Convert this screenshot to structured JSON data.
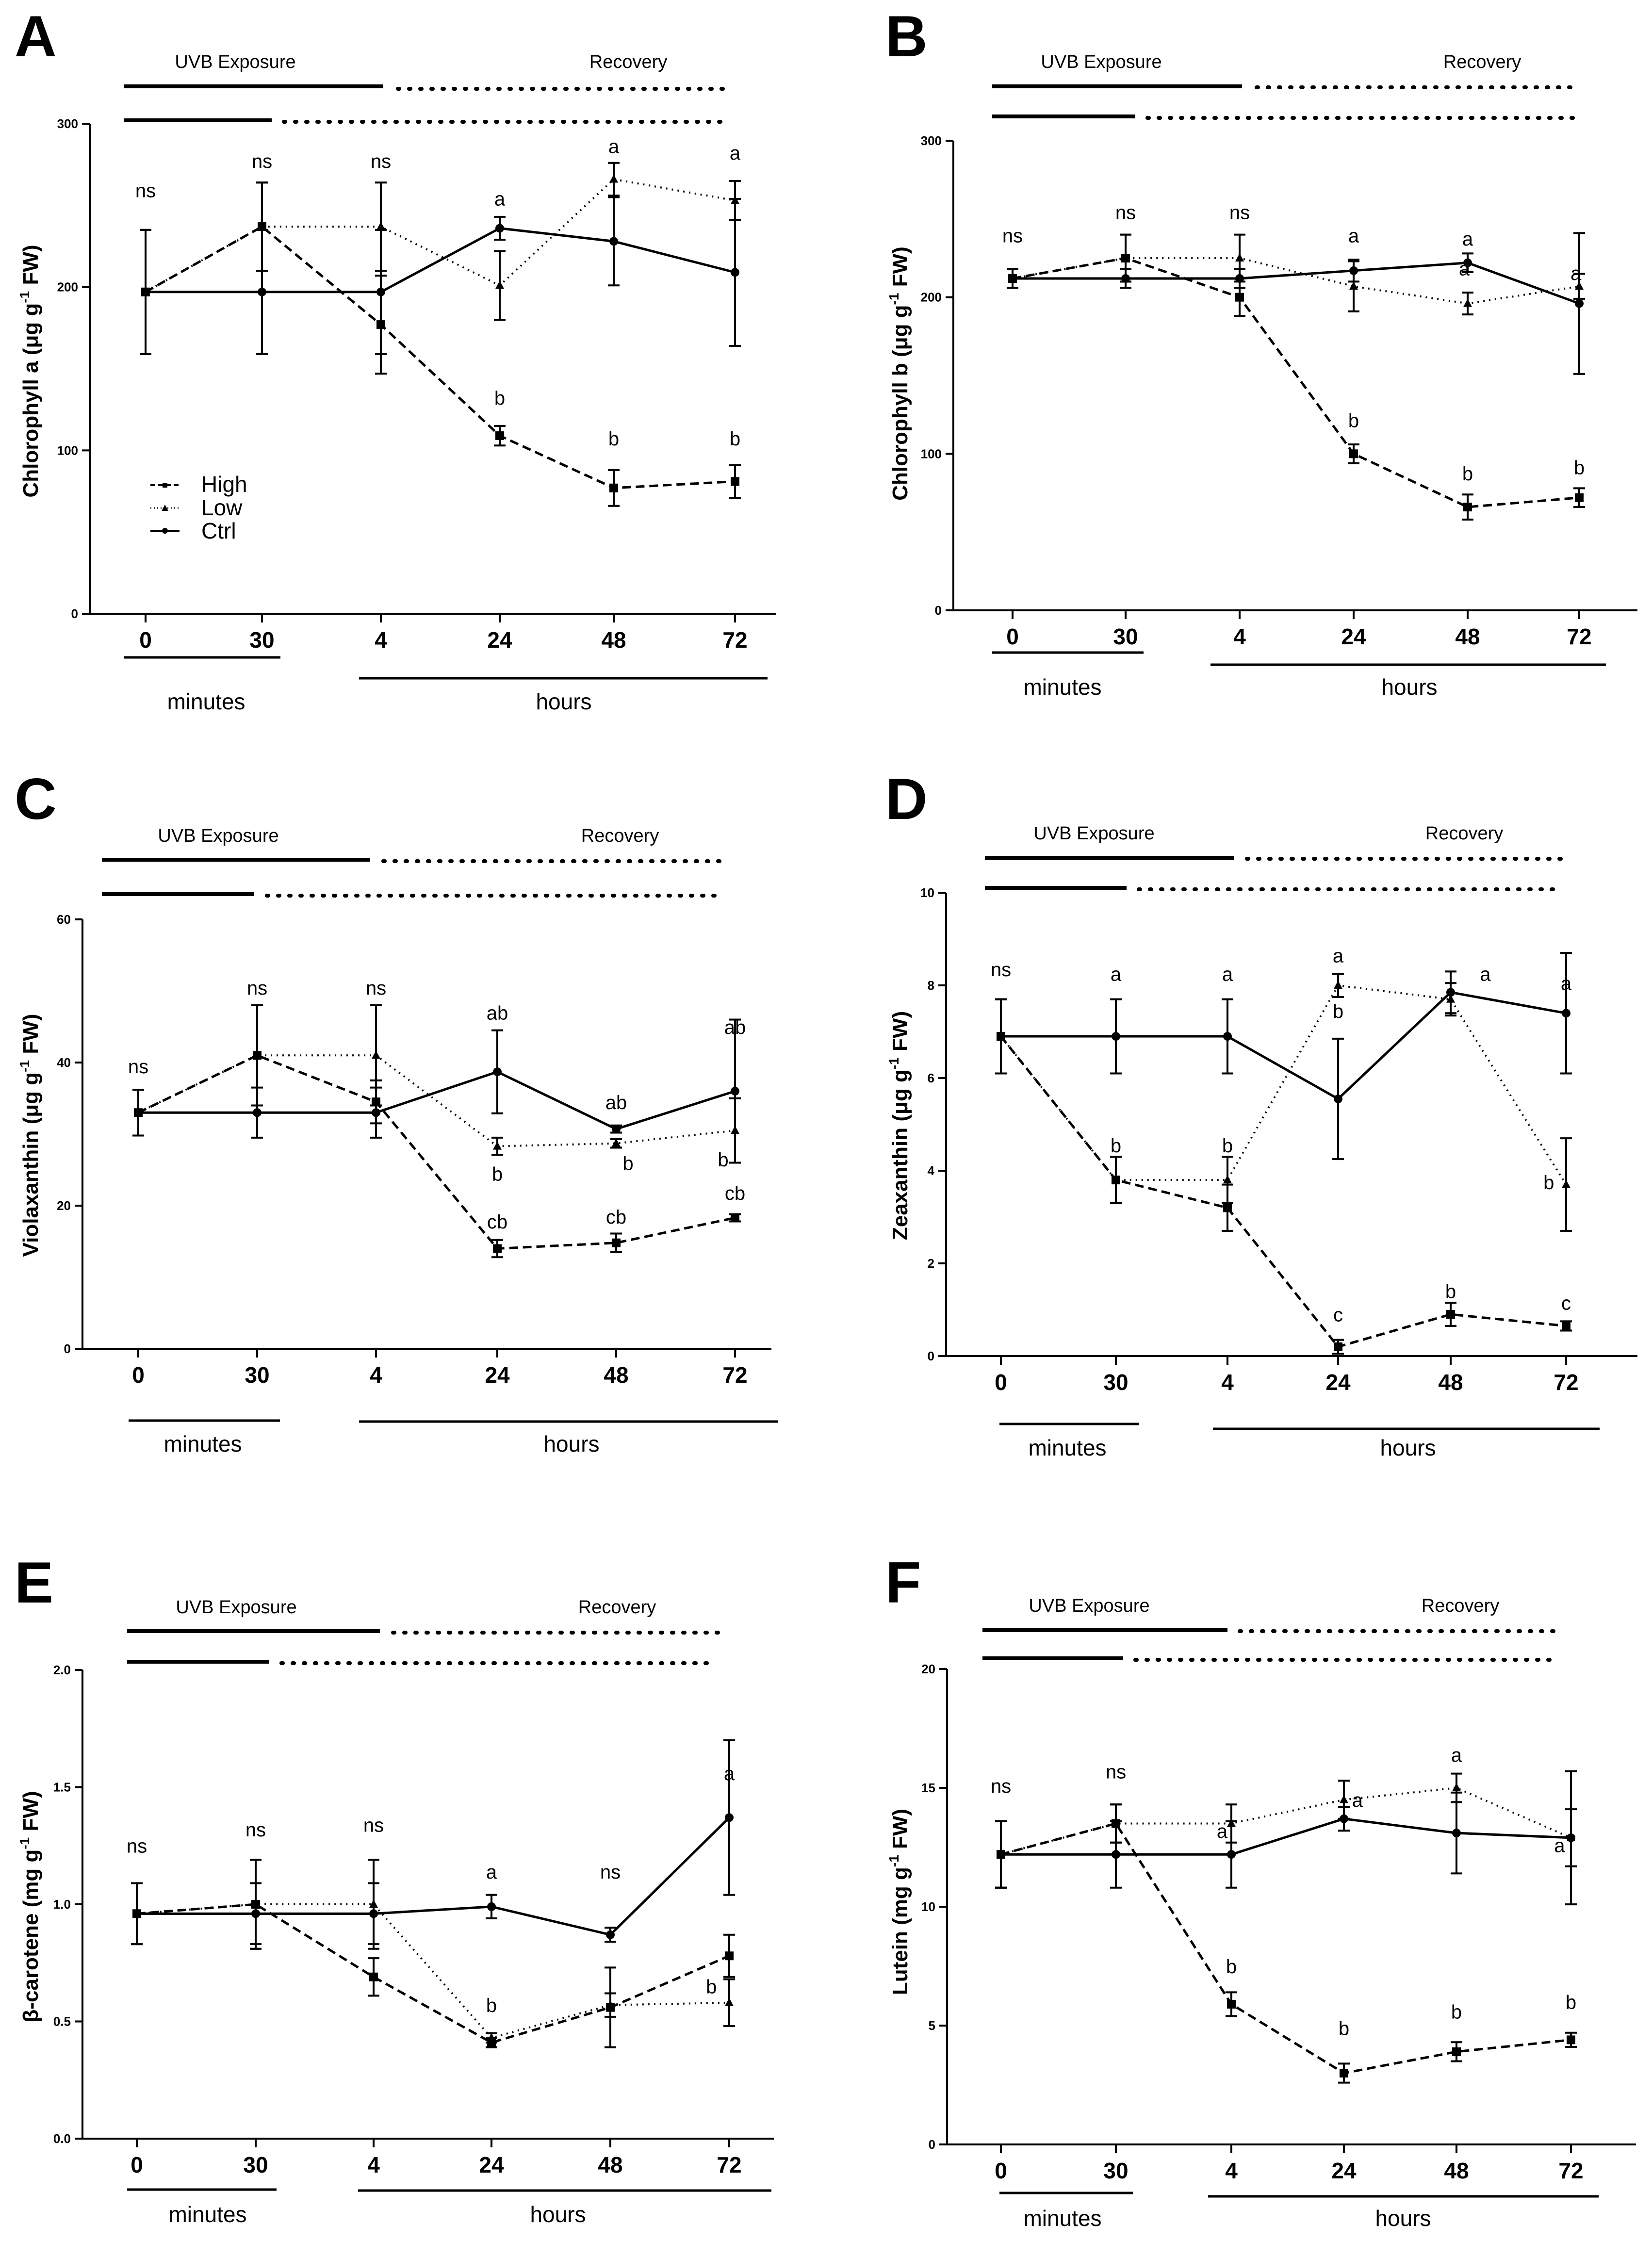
{
  "legend": {
    "high": "High",
    "low": "Low",
    "ctrl": "Ctrl"
  },
  "chart_data": [
    {
      "type": "line",
      "panel": "A",
      "ylabel_main": "Chlorophyll a (μg g",
      "ylabel_sup": "-1",
      "ylabel_end": " FW)",
      "ylim": [
        0,
        300
      ],
      "yticks": [
        0,
        100,
        200,
        300
      ],
      "yticklabels": [
        "0",
        "100",
        "200",
        "300"
      ],
      "categories": [
        "0",
        "30",
        "4",
        "24",
        "48",
        "72"
      ],
      "minutes_label": "minutes",
      "hours_label": "hours",
      "uvb_label": "UVB Exposure",
      "recovery_label": "Recovery",
      "legend_position": "lower-left",
      "series": [
        {
          "name": "High",
          "values": [
            197,
            237,
            177,
            109,
            77,
            81
          ],
          "errors": [
            38,
            27,
            30,
            6,
            11,
            10
          ]
        },
        {
          "name": "Low",
          "values": [
            197,
            237,
            237,
            201,
            266,
            253
          ],
          "errors": [
            38,
            27,
            27,
            21,
            10,
            12
          ]
        },
        {
          "name": "Ctrl",
          "values": [
            197,
            197,
            197,
            236,
            228,
            209
          ],
          "errors": [
            38,
            38,
            38,
            7,
            27,
            45
          ]
        }
      ],
      "annotations": [
        {
          "x": 0,
          "y": 255,
          "text": "ns"
        },
        {
          "x": 1,
          "y": 273,
          "text": "ns"
        },
        {
          "x": 2,
          "y": 273,
          "text": "ns"
        },
        {
          "x": 3,
          "y": 250,
          "text": "a"
        },
        {
          "x": 4,
          "y": 282,
          "text": "a"
        },
        {
          "x": 5,
          "y": 278,
          "text": "a"
        },
        {
          "x": 3,
          "y": 128,
          "text": "b"
        },
        {
          "x": 4,
          "y": 103,
          "text": "b"
        },
        {
          "x": 5,
          "y": 103,
          "text": "b"
        }
      ]
    },
    {
      "type": "line",
      "panel": "B",
      "ylabel_main": "Chlorophyll b (μg g",
      "ylabel_sup": "-1",
      "ylabel_end": " FW)",
      "ylim": [
        0,
        300
      ],
      "yticks": [
        0,
        100,
        200,
        300
      ],
      "yticklabels": [
        "0",
        "100",
        "200",
        "300"
      ],
      "categories": [
        "0",
        "30",
        "4",
        "24",
        "48",
        "72"
      ],
      "minutes_label": "minutes",
      "hours_label": "hours",
      "uvb_label": "UVB Exposure",
      "recovery_label": "Recovery",
      "series": [
        {
          "name": "High",
          "values": [
            212,
            225,
            200,
            100,
            66,
            72
          ],
          "errors": [
            6,
            15,
            12,
            6,
            8,
            6
          ]
        },
        {
          "name": "Low",
          "values": [
            212,
            225,
            225,
            207,
            196,
            207
          ],
          "errors": [
            6,
            15,
            15,
            16,
            7,
            8
          ]
        },
        {
          "name": "Ctrl",
          "values": [
            212,
            212,
            212,
            217,
            222,
            196
          ],
          "errors": [
            6,
            6,
            6,
            7,
            6,
            45
          ]
        }
      ],
      "annotations": [
        {
          "x": 0,
          "y": 235,
          "text": "ns"
        },
        {
          "x": 1,
          "y": 250,
          "text": "ns"
        },
        {
          "x": 2,
          "y": 250,
          "text": "ns"
        },
        {
          "x": 3,
          "y": 235,
          "text": "a"
        },
        {
          "x": 4,
          "y": 233,
          "text": "a"
        },
        {
          "x": 3.97,
          "y": 214,
          "text": "a"
        },
        {
          "x": 4.97,
          "y": 211,
          "text": "a"
        },
        {
          "x": 3,
          "y": 117,
          "text": "b"
        },
        {
          "x": 4,
          "y": 83,
          "text": "b"
        },
        {
          "x": 5,
          "y": 87,
          "text": "b"
        }
      ]
    },
    {
      "type": "line",
      "panel": "C",
      "ylabel_main": "Violaxanthin (μg g",
      "ylabel_sup": "-1",
      "ylabel_end": " FW)",
      "ylim": [
        0,
        60
      ],
      "yticks": [
        0,
        20,
        40,
        60
      ],
      "yticklabels": [
        "0",
        "20",
        "40",
        "60"
      ],
      "categories": [
        "0",
        "30",
        "4",
        "24",
        "48",
        "72"
      ],
      "minutes_label": "minutes",
      "hours_label": "hours",
      "uvb_label": "UVB Exposure",
      "recovery_label": "Recovery",
      "series": [
        {
          "name": "High",
          "values": [
            33,
            41,
            34.5,
            14,
            14.8,
            18.3
          ],
          "errors": [
            3.2,
            7,
            3,
            1.2,
            1.3,
            0.5
          ]
        },
        {
          "name": "Low",
          "values": [
            33,
            41,
            41,
            28.3,
            28.7,
            30.5
          ],
          "errors": [
            3.2,
            7,
            7,
            1.2,
            0.6,
            4.5
          ]
        },
        {
          "name": "Ctrl",
          "values": [
            33,
            33,
            33,
            38.7,
            30.7,
            36
          ],
          "errors": [
            3.2,
            3.5,
            3.5,
            5.8,
            0.5,
            10
          ]
        }
      ],
      "annotations": [
        {
          "x": 0,
          "y": 38.5,
          "text": "ns"
        },
        {
          "x": 1,
          "y": 49.5,
          "text": "ns"
        },
        {
          "x": 2,
          "y": 49.5,
          "text": "ns"
        },
        {
          "x": 3,
          "y": 46,
          "text": "ab"
        },
        {
          "x": 4,
          "y": 33.5,
          "text": "ab"
        },
        {
          "x": 5,
          "y": 44,
          "text": "ab"
        },
        {
          "x": 3,
          "y": 23.5,
          "text": "b"
        },
        {
          "x": 4.1,
          "y": 25,
          "text": "b"
        },
        {
          "x": 4.9,
          "y": 25.5,
          "text": "b"
        },
        {
          "x": 3,
          "y": 16.8,
          "text": "cb"
        },
        {
          "x": 4,
          "y": 17.5,
          "text": "cb"
        },
        {
          "x": 5,
          "y": 20.8,
          "text": "cb"
        }
      ]
    },
    {
      "type": "line",
      "panel": "D",
      "ylabel_main": "Zeaxanthin (μg g",
      "ylabel_sup": "-1",
      "ylabel_end": " FW)",
      "ylim": [
        0,
        10
      ],
      "yticks": [
        0,
        2,
        4,
        6,
        8,
        10
      ],
      "yticklabels": [
        "0",
        "2",
        "4",
        "6",
        "8",
        "10"
      ],
      "categories": [
        "0",
        "30",
        "4",
        "24",
        "48",
        "72"
      ],
      "minutes_label": "minutes",
      "hours_label": "hours",
      "uvb_label": "UVB Exposure",
      "recovery_label": "Recovery",
      "series": [
        {
          "name": "High",
          "values": [
            6.9,
            3.8,
            3.2,
            0.2,
            0.9,
            0.65
          ],
          "errors": [
            0.8,
            0.5,
            0.5,
            0.15,
            0.25,
            0.1
          ]
        },
        {
          "name": "Low",
          "values": [
            6.9,
            3.8,
            3.8,
            8.0,
            7.7,
            3.7
          ],
          "errors": [
            0.8,
            0.5,
            0.5,
            0.25,
            0.35,
            1.0
          ]
        },
        {
          "name": "Ctrl",
          "values": [
            6.9,
            6.9,
            6.9,
            5.55,
            7.85,
            7.4
          ],
          "errors": [
            0.8,
            0.8,
            0.8,
            1.3,
            0.45,
            1.3
          ]
        }
      ],
      "annotations": [
        {
          "x": 0,
          "y": 8.2,
          "text": "ns"
        },
        {
          "x": 1,
          "y": 8.1,
          "text": "a"
        },
        {
          "x": 2,
          "y": 8.1,
          "text": "a"
        },
        {
          "x": 3,
          "y": 8.5,
          "text": "a"
        },
        {
          "x": 4.3,
          "y": 8.1,
          "text": "a"
        },
        {
          "x": 5,
          "y": 7.9,
          "text": "a"
        },
        {
          "x": 3,
          "y": 7.3,
          "text": "b"
        },
        {
          "x": 1,
          "y": 4.4,
          "text": "b"
        },
        {
          "x": 2,
          "y": 4.4,
          "text": "b"
        },
        {
          "x": 4.85,
          "y": 3.6,
          "text": "b"
        },
        {
          "x": 3,
          "y": 0.75,
          "text": "c"
        },
        {
          "x": 4,
          "y": 1.25,
          "text": "b"
        },
        {
          "x": 5,
          "y": 1.0,
          "text": "c"
        }
      ]
    },
    {
      "type": "line",
      "panel": "E",
      "ylabel_main": "β-carotene (mg g",
      "ylabel_sup": "-1",
      "ylabel_end": " FW)",
      "ylim": [
        0,
        2
      ],
      "yticks": [
        0,
        0.5,
        1,
        1.5,
        2
      ],
      "yticklabels": [
        "0.0",
        "0.5",
        "1.0",
        "1.5",
        "2.0"
      ],
      "categories": [
        "0",
        "30",
        "4",
        "24",
        "48",
        "72"
      ],
      "minutes_label": "minutes",
      "hours_label": "hours",
      "uvb_label": "UVB Exposure",
      "recovery_label": "Recovery",
      "series": [
        {
          "name": "High",
          "values": [
            0.96,
            1.0,
            0.69,
            0.41,
            0.56,
            0.78
          ],
          "errors": [
            0.13,
            0.19,
            0.08,
            0.02,
            0.17,
            0.09
          ]
        },
        {
          "name": "Low",
          "values": [
            0.96,
            1.0,
            1.0,
            0.43,
            0.57,
            0.58
          ],
          "errors": [
            0.13,
            0.19,
            0.19,
            0.02,
            0.05,
            0.1
          ]
        },
        {
          "name": "Ctrl",
          "values": [
            0.96,
            0.96,
            0.96,
            0.99,
            0.87,
            1.37
          ],
          "errors": [
            0.13,
            0.13,
            0.13,
            0.05,
            0.03,
            0.33
          ]
        }
      ],
      "annotations": [
        {
          "x": 0,
          "y": 1.22,
          "text": "ns"
        },
        {
          "x": 1,
          "y": 1.29,
          "text": "ns"
        },
        {
          "x": 2,
          "y": 1.31,
          "text": "ns"
        },
        {
          "x": 3,
          "y": 1.11,
          "text": "a"
        },
        {
          "x": 4,
          "y": 1.11,
          "text": "ns"
        },
        {
          "x": 5,
          "y": 1.53,
          "text": "a"
        },
        {
          "x": 3,
          "y": 0.54,
          "text": "b"
        },
        {
          "x": 4.85,
          "y": 0.62,
          "text": "b"
        }
      ]
    },
    {
      "type": "line",
      "panel": "F",
      "ylabel_main": "Lutein (mg g",
      "ylabel_sup": "-1",
      "ylabel_end": " FW)",
      "ylim": [
        0,
        20
      ],
      "yticks": [
        0,
        5,
        10,
        15,
        20
      ],
      "yticklabels": [
        "0",
        "5",
        "10",
        "15",
        "20"
      ],
      "categories": [
        "0",
        "30",
        "4",
        "24",
        "48",
        "72"
      ],
      "minutes_label": "minutes",
      "hours_label": "hours",
      "uvb_label": "UVB Exposure",
      "recovery_label": "Recovery",
      "series": [
        {
          "name": "High",
          "values": [
            12.2,
            13.5,
            5.9,
            3.0,
            3.9,
            4.4
          ],
          "errors": [
            1.4,
            0.8,
            0.5,
            0.4,
            0.4,
            0.3
          ]
        },
        {
          "name": "Low",
          "values": [
            12.2,
            13.5,
            13.5,
            14.5,
            15.0,
            12.9
          ],
          "errors": [
            1.4,
            0.8,
            0.8,
            0.8,
            0.6,
            1.2
          ]
        },
        {
          "name": "Ctrl",
          "values": [
            12.2,
            12.2,
            12.2,
            13.7,
            13.1,
            12.9
          ],
          "errors": [
            1.4,
            1.4,
            1.4,
            0.5,
            1.7,
            2.8
          ]
        }
      ],
      "annotations": [
        {
          "x": 0,
          "y": 14.8,
          "text": "ns"
        },
        {
          "x": 1,
          "y": 15.4,
          "text": "ns"
        },
        {
          "x": 1.92,
          "y": 12.9,
          "text": "a"
        },
        {
          "x": 3.12,
          "y": 14.2,
          "text": "a"
        },
        {
          "x": 4,
          "y": 16.1,
          "text": "a"
        },
        {
          "x": 4.9,
          "y": 12.3,
          "text": "a"
        },
        {
          "x": 2,
          "y": 7.2,
          "text": "b"
        },
        {
          "x": 3,
          "y": 4.6,
          "text": "b"
        },
        {
          "x": 4,
          "y": 5.3,
          "text": "b"
        },
        {
          "x": 5,
          "y": 5.7,
          "text": "b"
        }
      ]
    }
  ]
}
